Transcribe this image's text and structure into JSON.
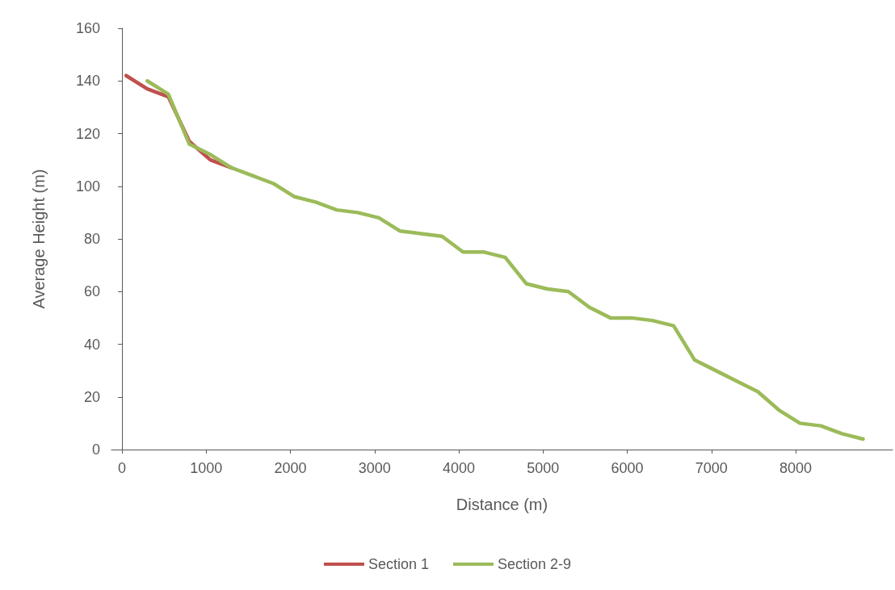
{
  "chart_data": {
    "type": "line",
    "xlabel": "Distance (m)",
    "ylabel": "Average Height (m)",
    "xlim": [
      -125,
      9150
    ],
    "xticks": [
      0,
      1000,
      2000,
      3000,
      4000,
      5000,
      6000,
      7000,
      8000
    ],
    "ylim": [
      0,
      160
    ],
    "yticks": [
      0,
      20,
      40,
      60,
      80,
      100,
      120,
      140,
      160
    ],
    "grid": false,
    "legend": "bottom",
    "marker": "none",
    "line_style": "solid",
    "series": [
      {
        "name": "Section 1",
        "color": "#c0504d",
        "x": [
          50,
          300,
          550,
          800,
          1050,
          1300
        ],
        "values": [
          142,
          137,
          134,
          117,
          110,
          107
        ]
      },
      {
        "name": "Section 2-9",
        "color": "#9bbb59",
        "x": [
          300,
          550,
          800,
          1050,
          1300,
          1550,
          1800,
          2050,
          2300,
          2550,
          2800,
          3050,
          3300,
          3550,
          3800,
          4050,
          4300,
          4550,
          4800,
          5050,
          5300,
          5550,
          5800,
          6050,
          6300,
          6550,
          6800,
          7050,
          7300,
          7550,
          7800,
          8050,
          8300,
          8550,
          8800
        ],
        "values": [
          140,
          135,
          116,
          112,
          107,
          104,
          101,
          96,
          94,
          91,
          90,
          88,
          83,
          82,
          81,
          75,
          75,
          73,
          63,
          61,
          60,
          54,
          50,
          50,
          49,
          47,
          34,
          30,
          26,
          22,
          15,
          10,
          9,
          6,
          4
        ]
      }
    ]
  }
}
